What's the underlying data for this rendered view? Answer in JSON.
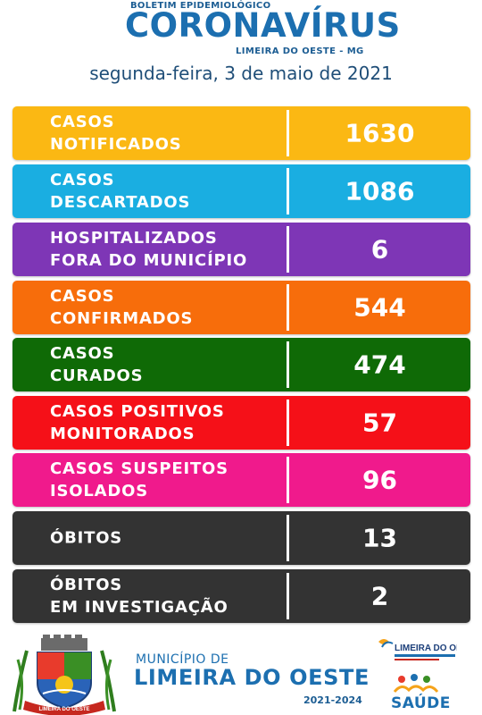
{
  "header": {
    "kicker": "BOLETIM EPIDEMIOLÓGICO",
    "title": "CORONAVÍRUS",
    "subtitle": "LIMEIRA DO OESTE - MG",
    "date": "segunda-feira, 3 de maio de 2021"
  },
  "rows": [
    {
      "label": "CASOS\nNOTIFICADOS",
      "value": "1630",
      "color": "#fbb813"
    },
    {
      "label": "CASOS\nDESCARTADOS",
      "value": "1086",
      "color": "#1aaee1"
    },
    {
      "label": "HOSPITALIZADOS\nFORA DO MUNICÍPIO",
      "value": "6",
      "color": "#7e36b6"
    },
    {
      "label": "CASOS\nCONFIRMADOS",
      "value": "544",
      "color": "#f76d0b"
    },
    {
      "label": "CASOS\nCURADOS",
      "value": "474",
      "color": "#0f6a06"
    },
    {
      "label": "CASOS POSITIVOS\nMONITORADOS",
      "value": "57",
      "color": "#f51018"
    },
    {
      "label": "CASOS SUSPEITOS\nISOLADOS",
      "value": "96",
      "color": "#f01a8c"
    },
    {
      "label": "ÓBITOS",
      "value": "13",
      "color": "#333333"
    },
    {
      "label": "ÓBITOS\nEM INVESTIGAÇÃO",
      "value": "2",
      "color": "#333333"
    }
  ],
  "footer": {
    "municipio_label": "MUNICÍPIO DE",
    "municipio_name": "LIMEIRA DO OESTE",
    "term": "2021-2024",
    "crest_text": "LIMEIRA DO OESTE",
    "secretaria_logo_text": "LIMEIRA DO OESTE",
    "saude_label": "SAÚDE"
  }
}
